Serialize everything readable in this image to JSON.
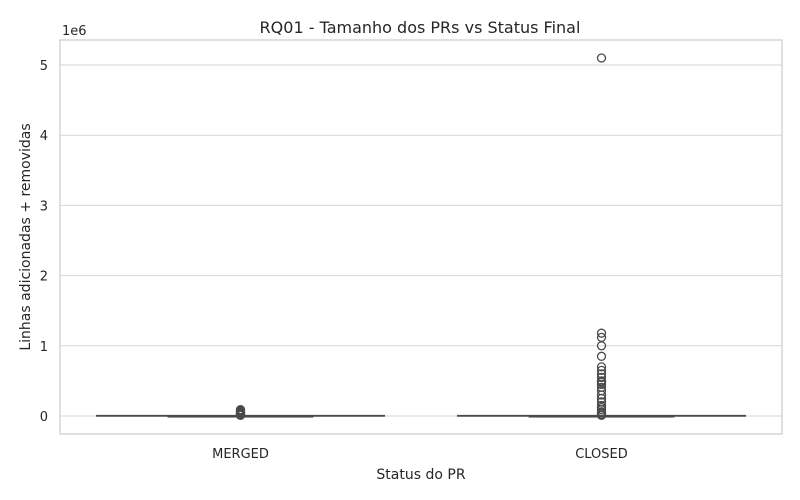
{
  "chart_data": {
    "type": "box",
    "title": "RQ01 - Tamanho dos PRs vs Status Final",
    "xlabel": "Status do PR",
    "ylabel": "Linhas adicionadas + removidas",
    "y_offset_label": "1e6",
    "categories": [
      "MERGED",
      "CLOSED"
    ],
    "y_ticks": [
      0,
      1,
      2,
      3,
      4,
      5
    ],
    "ylim": [
      -0.25,
      5.35
    ],
    "grid": true,
    "legend": "none",
    "colors": {
      "box": "#d0d0d0",
      "line": "#4a4a4a",
      "grid": "#d5d5d5",
      "frame": "#cccccc"
    },
    "series": [
      {
        "category": "MERGED",
        "whisker_low": 0,
        "q1": 0,
        "median": 0.001,
        "q3": 0.003,
        "whisker_high": 0.006,
        "outliers": [
          0.01,
          0.015,
          0.02,
          0.03,
          0.04,
          0.05,
          0.06,
          0.07,
          0.08,
          0.09
        ]
      },
      {
        "category": "CLOSED",
        "whisker_low": 0,
        "q1": 0,
        "median": 0.001,
        "q3": 0.003,
        "whisker_high": 0.006,
        "outliers": [
          0.01,
          0.02,
          0.04,
          0.06,
          0.09,
          0.12,
          0.15,
          0.2,
          0.25,
          0.3,
          0.36,
          0.41,
          0.45,
          0.48,
          0.5,
          0.55,
          0.6,
          0.65,
          0.7,
          0.85,
          1.0,
          1.12,
          1.18,
          5.1
        ]
      }
    ]
  }
}
